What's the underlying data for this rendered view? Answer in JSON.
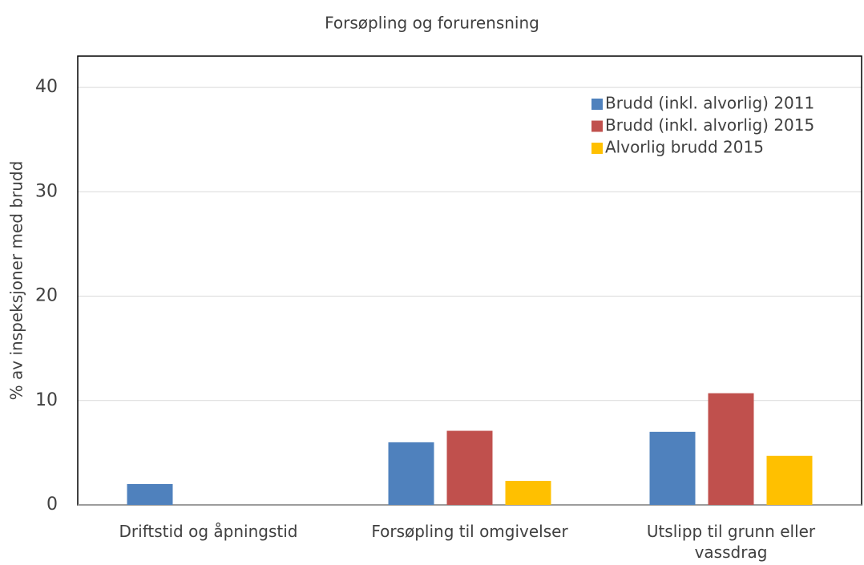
{
  "chart_data": {
    "type": "bar",
    "title": "Forsøpling og forurensning",
    "y_label": "% av inspeksjoner med brudd",
    "categories": [
      "Driftstid og åpningstid",
      "Forsøpling til omgivelser",
      "Utslipp til grunn eller vassdrag"
    ],
    "series": [
      {
        "name": "Brudd (inkl. alvorlig) 2011",
        "color": "#4f81bd",
        "values": [
          2.0,
          6.0,
          7.0
        ]
      },
      {
        "name": "Brudd (inkl. alvorlig) 2015",
        "color": "#c0504d",
        "values": [
          0,
          7.1,
          10.7
        ]
      },
      {
        "name": "Alvorlig brudd 2015",
        "color": "#ffc000",
        "values": [
          0,
          2.3,
          4.7
        ]
      }
    ],
    "ylim": [
      0,
      43
    ],
    "yticks": [
      0,
      10,
      20,
      30,
      40
    ],
    "grid": true,
    "legend": "top-right"
  }
}
